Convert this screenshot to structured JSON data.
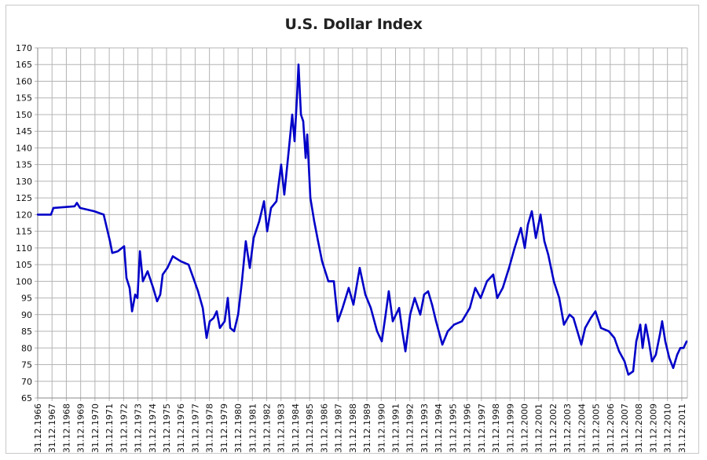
{
  "chart_data": {
    "type": "line",
    "title": "U.S. Dollar Index",
    "xlabel": "",
    "ylabel": "",
    "ylim": [
      65,
      170
    ],
    "ystep": 5,
    "xlim": [
      1967,
      2012.4
    ],
    "grid": true,
    "legend": "none",
    "line_color": "#0000c8",
    "x_tick_labels": [
      "31.12.1966",
      "31.12.1967",
      "31.12.1968",
      "31.12.1969",
      "31.12.1970",
      "31.12.1971",
      "31.12.1972",
      "31.12.1973",
      "31.12.1974",
      "31.12.1975",
      "31.12.1976",
      "31.12.1977",
      "31.12.1978",
      "31.12.1979",
      "31.12.1980",
      "31.12.1981",
      "31.12.1982",
      "31.12.1983",
      "31.12.1984",
      "31.12.1985",
      "31.12.1986",
      "31.12.1987",
      "31.12.1988",
      "31.12.1989",
      "31.12.1990",
      "31.12.1991",
      "31.12.1992",
      "31.12.1993",
      "31.12.1994",
      "31.12.1995",
      "31.12.1996",
      "31.12.1997",
      "31.12.1998",
      "31.12.1999",
      "31.12.2000",
      "31.12.2001",
      "31.12.2002",
      "31.12.2003",
      "31.12.2004",
      "31.12.2005",
      "31.12.2006",
      "31.12.2007",
      "31.12.2008",
      "31.12.2009",
      "31.12.2010",
      "31.12.2011"
    ],
    "series": [
      {
        "name": "U.S. Dollar Index",
        "x": [
          1967.0,
          1967.93,
          1968.1,
          1969.58,
          1969.74,
          1969.96,
          1970.95,
          1971.61,
          1972.05,
          1972.21,
          1972.6,
          1973.04,
          1973.2,
          1973.42,
          1973.59,
          1973.81,
          1973.97,
          1974.14,
          1974.35,
          1974.68,
          1975.07,
          1975.34,
          1975.56,
          1975.73,
          1976.06,
          1976.44,
          1976.99,
          1977.54,
          1977.87,
          1978.2,
          1978.53,
          1978.8,
          1979.02,
          1979.29,
          1979.51,
          1979.73,
          1980.06,
          1980.28,
          1980.45,
          1980.72,
          1981.0,
          1981.27,
          1981.54,
          1981.82,
          1982.09,
          1982.48,
          1982.81,
          1983.03,
          1983.3,
          1983.68,
          1984.01,
          1984.23,
          1984.56,
          1984.78,
          1984.95,
          1985.11,
          1985.22,
          1985.39,
          1985.55,
          1985.72,
          1985.83,
          1986.05,
          1986.32,
          1986.59,
          1986.87,
          1987.31,
          1987.69,
          1987.97,
          1988.3,
          1988.73,
          1989.06,
          1989.5,
          1989.89,
          1990.27,
          1990.71,
          1991.04,
          1991.31,
          1991.53,
          1991.81,
          1992.25,
          1992.47,
          1992.69,
          1993.02,
          1993.34,
          1993.73,
          1994.0,
          1994.28,
          1994.55,
          1994.83,
          1995.27,
          1995.65,
          1996.09,
          1996.64,
          1997.19,
          1997.57,
          1997.95,
          1998.39,
          1998.83,
          1999.11,
          1999.49,
          1999.93,
          2000.32,
          2000.76,
          2001.03,
          2001.25,
          2001.52,
          2001.8,
          2002.13,
          2002.4,
          2002.67,
          2003.06,
          2003.44,
          2003.77,
          2004.16,
          2004.43,
          2004.98,
          2005.25,
          2005.64,
          2005.97,
          2006.35,
          2006.9,
          2007.29,
          2007.62,
          2008.0,
          2008.27,
          2008.6,
          2008.82,
          2009.1,
          2009.26,
          2009.48,
          2009.7,
          2009.92,
          2010.19,
          2010.47,
          2010.63,
          2010.85,
          2011.13,
          2011.4,
          2011.68,
          2011.9,
          2012.12,
          2012.34
        ],
        "y": [
          120,
          120,
          122,
          122.5,
          123.5,
          122,
          121,
          120,
          112,
          108.5,
          109,
          110.5,
          101,
          98,
          91,
          96,
          95,
          109,
          100,
          103,
          98,
          94,
          96,
          102,
          104,
          107.5,
          106,
          105,
          101,
          97,
          92,
          83,
          88,
          89,
          91,
          86,
          88,
          95,
          86,
          85,
          90,
          100,
          112,
          104,
          113,
          118,
          124,
          115,
          122,
          124,
          135,
          126,
          140,
          150,
          142,
          155,
          165,
          150,
          148,
          137,
          144,
          125,
          118,
          112,
          106,
          100,
          100,
          88,
          92,
          98,
          93,
          104,
          96,
          92,
          85,
          82,
          90,
          97,
          88,
          92,
          85,
          79,
          90,
          95,
          90,
          96,
          97,
          93,
          88,
          81,
          85,
          87,
          88,
          92,
          98,
          95,
          100,
          102,
          95,
          98,
          104,
          110,
          116,
          110,
          117,
          121,
          113,
          120,
          112,
          108,
          100,
          95,
          87,
          90,
          89,
          81,
          86,
          89,
          91,
          86,
          85,
          83,
          79,
          76,
          72,
          73,
          82,
          87,
          80,
          87,
          82,
          76,
          78,
          84,
          88,
          82,
          77,
          74,
          78,
          80,
          80,
          82
        ]
      }
    ]
  }
}
